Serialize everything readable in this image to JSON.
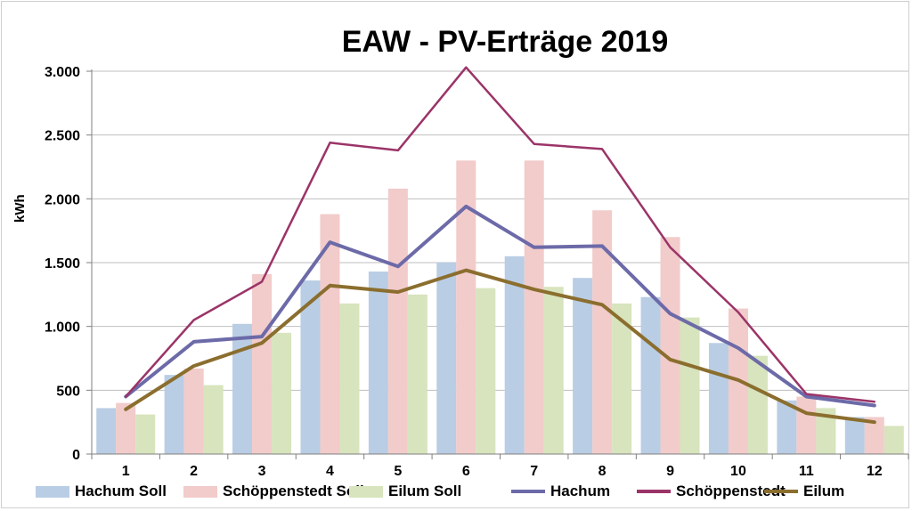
{
  "chart_data": {
    "type": "bar",
    "title": "EAW - PV-Erträge 2019",
    "xlabel": "",
    "ylabel": "kWh",
    "categories": [
      "1",
      "2",
      "3",
      "4",
      "5",
      "6",
      "7",
      "8",
      "9",
      "10",
      "11",
      "12"
    ],
    "ylim": [
      0,
      3000
    ],
    "yticks": [
      0,
      500,
      1000,
      1500,
      2000,
      2500,
      3000
    ],
    "ytick_labels": [
      "0",
      "500",
      "1.000",
      "1.500",
      "2.000",
      "2.500",
      "3.000"
    ],
    "grid": true,
    "legend_position": "bottom",
    "bar_series": [
      {
        "name": "Hachum Soll",
        "color": "#b9cde5",
        "values": [
          360,
          620,
          1020,
          1360,
          1430,
          1500,
          1550,
          1380,
          1230,
          870,
          420,
          290
        ]
      },
      {
        "name": "Schöppenstedt Soll",
        "color": "#f2cbcb",
        "values": [
          400,
          670,
          1410,
          1880,
          2080,
          2300,
          2300,
          1910,
          1700,
          1140,
          450,
          290
        ]
      },
      {
        "name": "Eilum Soll",
        "color": "#d7e4bd",
        "values": [
          310,
          540,
          950,
          1180,
          1250,
          1300,
          1310,
          1180,
          1070,
          770,
          360,
          220
        ]
      }
    ],
    "line_series": [
      {
        "name": "Hachum",
        "color": "#6c6aa8",
        "values": [
          450,
          880,
          920,
          1660,
          1470,
          1940,
          1620,
          1630,
          1100,
          830,
          450,
          380
        ]
      },
      {
        "name": "Schöppenstedt",
        "color": "#9b3468",
        "values": [
          450,
          1050,
          1350,
          2440,
          2380,
          3030,
          2430,
          2390,
          1620,
          1110,
          470,
          410
        ]
      },
      {
        "name": "Eilum",
        "color": "#8b6e2e",
        "values": [
          350,
          690,
          870,
          1320,
          1270,
          1440,
          1290,
          1170,
          740,
          580,
          320,
          250
        ]
      }
    ]
  }
}
